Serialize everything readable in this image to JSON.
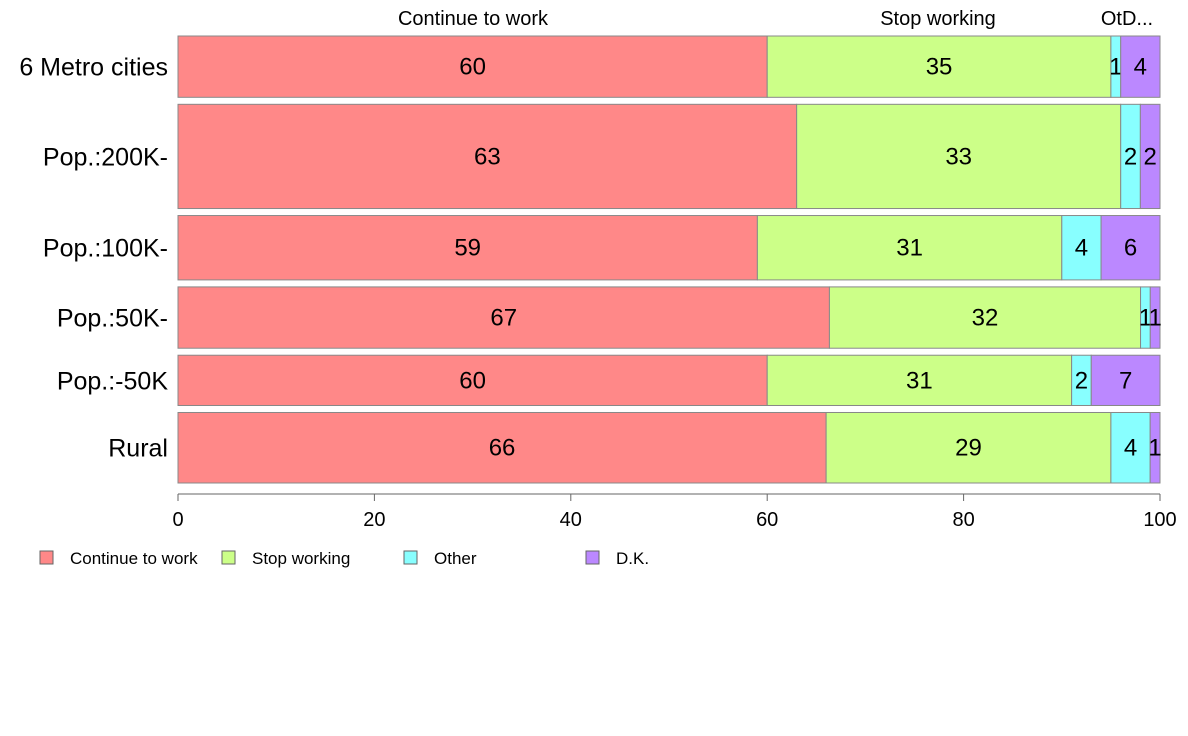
{
  "chart_data": {
    "type": "bar",
    "orientation": "horizontal",
    "stacked": true,
    "categories": [
      "6 Metro cities",
      "Pop.:200K-",
      "Pop.:100K-",
      "Pop.:50K-",
      "Pop.:-50K",
      "Rural"
    ],
    "series": [
      {
        "name": "Continue to work",
        "color": "#FF8888",
        "values": [
          60,
          63,
          59,
          67,
          60,
          66
        ],
        "labels": [
          "60",
          "63",
          "59",
          "67",
          "60",
          "66"
        ]
      },
      {
        "name": "Stop working",
        "color": "#CCFF88",
        "values": [
          35,
          33,
          31,
          32,
          31,
          29
        ],
        "labels": [
          "35",
          "33",
          "31",
          "32",
          "31",
          "29"
        ]
      },
      {
        "name": "Other",
        "color": "#88FFFF",
        "values": [
          1,
          2,
          4,
          1,
          2,
          4
        ],
        "labels": [
          "1",
          "2",
          "4",
          "1",
          "2",
          "4"
        ]
      },
      {
        "name": "D.K.",
        "color": "#BB88FF",
        "values": [
          4,
          2,
          6,
          1,
          7,
          1
        ],
        "labels": [
          "4",
          "2",
          "6",
          "1",
          "7",
          "1"
        ]
      }
    ],
    "row_weights": [
      1,
      1.7,
      1.05,
      1.0,
      0.82,
      1.15
    ],
    "top_labels": [
      "Continue to work",
      "Stop working",
      "OtD..."
    ],
    "xlim": [
      0,
      100
    ],
    "xticks": [
      "0",
      "20",
      "40",
      "60",
      "80",
      "100"
    ],
    "legend_position": "bottom-left",
    "grid": false
  }
}
